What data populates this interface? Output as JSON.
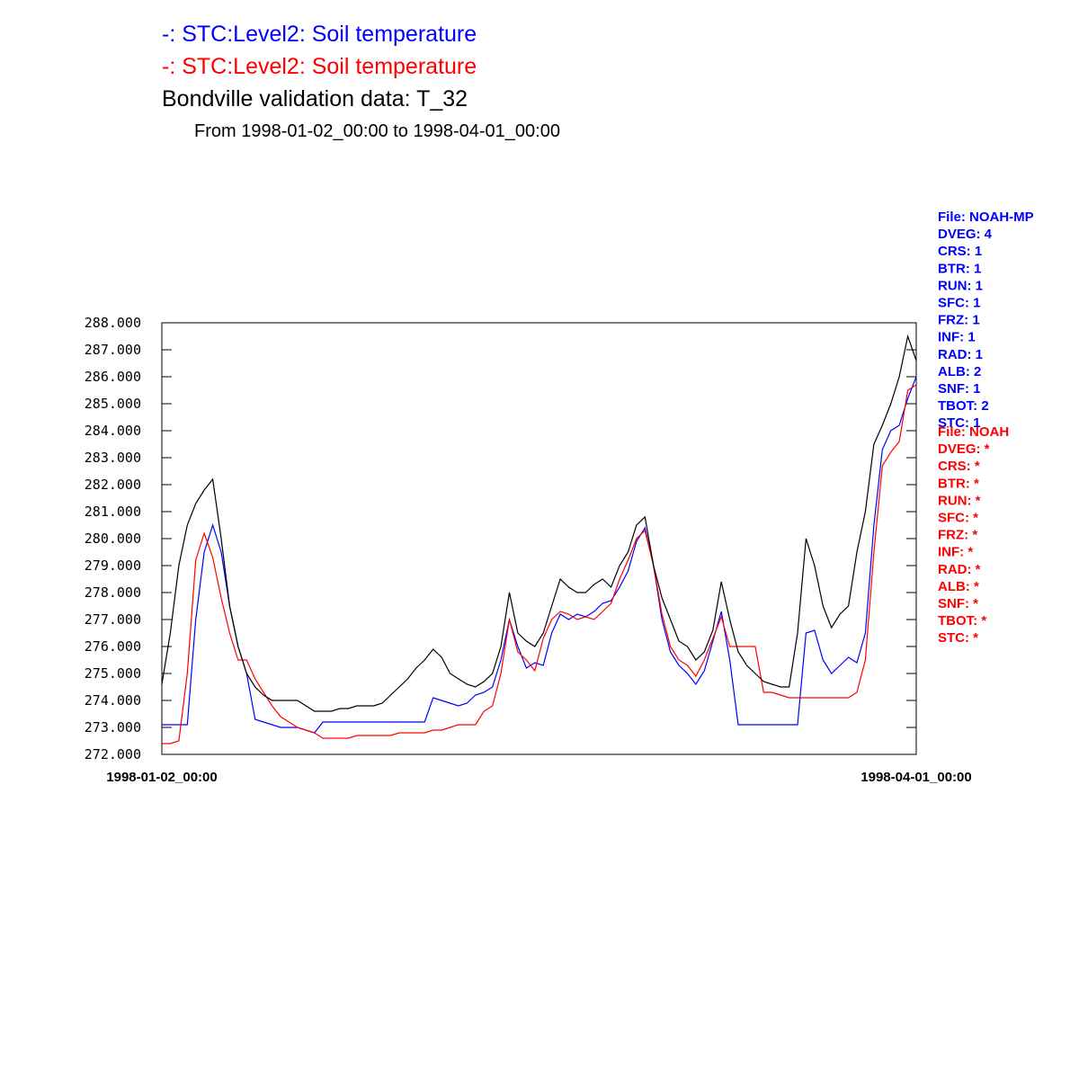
{
  "chart_data": {
    "type": "line",
    "subtitle": "From 1998-01-02_00:00 to 1998-04-01_00:00",
    "x": [
      "1998-01-02_00:00",
      "1998-01-03_00:00",
      "1998-01-04_00:00",
      "1998-01-05_00:00",
      "1998-01-06_00:00",
      "1998-01-07_00:00",
      "1998-01-08_00:00",
      "1998-01-09_00:00",
      "1998-01-10_00:00",
      "1998-01-11_00:00",
      "1998-01-12_00:00",
      "1998-01-13_00:00",
      "1998-01-14_00:00",
      "1998-01-15_00:00",
      "1998-01-16_00:00",
      "1998-01-17_00:00",
      "1998-01-18_00:00",
      "1998-01-19_00:00",
      "1998-01-20_00:00",
      "1998-01-21_00:00",
      "1998-01-22_00:00",
      "1998-01-23_00:00",
      "1998-01-24_00:00",
      "1998-01-25_00:00",
      "1998-01-26_00:00",
      "1998-01-27_00:00",
      "1998-01-28_00:00",
      "1998-01-29_00:00",
      "1998-01-30_00:00",
      "1998-01-31_00:00",
      "1998-02-01_00:00",
      "1998-02-02_00:00",
      "1998-02-03_00:00",
      "1998-02-04_00:00",
      "1998-02-05_00:00",
      "1998-02-06_00:00",
      "1998-02-07_00:00",
      "1998-02-08_00:00",
      "1998-02-09_00:00",
      "1998-02-10_00:00",
      "1998-02-11_00:00",
      "1998-02-12_00:00",
      "1998-02-13_00:00",
      "1998-02-14_00:00",
      "1998-02-15_00:00",
      "1998-02-16_00:00",
      "1998-02-17_00:00",
      "1998-02-18_00:00",
      "1998-02-19_00:00",
      "1998-02-20_00:00",
      "1998-02-21_00:00",
      "1998-02-22_00:00",
      "1998-02-23_00:00",
      "1998-02-24_00:00",
      "1998-02-25_00:00",
      "1998-02-26_00:00",
      "1998-02-27_00:00",
      "1998-02-28_00:00",
      "1998-03-01_00:00",
      "1998-03-02_00:00",
      "1998-03-03_00:00",
      "1998-03-04_00:00",
      "1998-03-05_00:00",
      "1998-03-06_00:00",
      "1998-03-07_00:00",
      "1998-03-08_00:00",
      "1998-03-09_00:00",
      "1998-03-10_00:00",
      "1998-03-11_00:00",
      "1998-03-12_00:00",
      "1998-03-13_00:00",
      "1998-03-14_00:00",
      "1998-03-15_00:00",
      "1998-03-16_00:00",
      "1998-03-17_00:00",
      "1998-03-18_00:00",
      "1998-03-19_00:00",
      "1998-03-20_00:00",
      "1998-03-21_00:00",
      "1998-03-22_00:00",
      "1998-03-23_00:00",
      "1998-03-24_00:00",
      "1998-03-25_00:00",
      "1998-03-26_00:00",
      "1998-03-27_00:00",
      "1998-03-28_00:00",
      "1998-03-29_00:00",
      "1998-03-30_00:00",
      "1998-03-31_00:00",
      "1998-04-01_00:00"
    ],
    "series": [
      {
        "name": "-:  STC:Level2: Soil temperature",
        "color": "#0000ff",
        "values": [
          273.1,
          273.1,
          273.1,
          273.1,
          277,
          279.5,
          280.5,
          279.5,
          277.5,
          276,
          275,
          273.3,
          273.2,
          273.1,
          273,
          273,
          273,
          272.9,
          272.8,
          273.2,
          273.2,
          273.2,
          273.2,
          273.2,
          273.2,
          273.2,
          273.2,
          273.2,
          273.2,
          273.2,
          273.2,
          273.2,
          274.1,
          274,
          273.9,
          273.8,
          273.9,
          274.2,
          274.3,
          274.5,
          275.5,
          277,
          276,
          275.2,
          275.4,
          275.3,
          276.5,
          277.2,
          277,
          277.2,
          277.1,
          277.3,
          277.6,
          277.7,
          278.2,
          278.8,
          279.9,
          280.4,
          279,
          277,
          275.8,
          275.3,
          275,
          274.6,
          275.1,
          276.2,
          277.3,
          275.5,
          273.1,
          273.1,
          273.1,
          273.1,
          273.1,
          273.1,
          273.1,
          273.1,
          276.5,
          276.6,
          275.5,
          275,
          275.3,
          275.6,
          275.4,
          276.5,
          280.5,
          283.3,
          284,
          284.2,
          285.2,
          286
        ]
      },
      {
        "name": "-:  STC:Level2: Soil temperature",
        "color": "#ff0000",
        "values": [
          272.4,
          272.4,
          272.5,
          275,
          279.2,
          280.2,
          279.3,
          277.8,
          276.5,
          275.5,
          275.5,
          274.8,
          274.3,
          273.8,
          273.4,
          273.2,
          273,
          272.9,
          272.8,
          272.6,
          272.6,
          272.6,
          272.6,
          272.7,
          272.7,
          272.7,
          272.7,
          272.7,
          272.8,
          272.8,
          272.8,
          272.8,
          272.9,
          272.9,
          273,
          273.1,
          273.1,
          273.1,
          273.6,
          273.8,
          275,
          277,
          275.8,
          275.5,
          275.1,
          276.3,
          277,
          277.3,
          277.2,
          277,
          277.1,
          277,
          277.3,
          277.6,
          278.5,
          279.2,
          280,
          280.3,
          279,
          277.2,
          276,
          275.5,
          275.3,
          274.9,
          275.5,
          276.3,
          277.1,
          276,
          276,
          276,
          276,
          274.3,
          274.3,
          274.2,
          274.1,
          274.1,
          274.1,
          274.1,
          274.1,
          274.1,
          274.1,
          274.1,
          274.3,
          275.5,
          279.5,
          282.7,
          283.2,
          283.6,
          285.5,
          285.7
        ]
      },
      {
        "name": "Bondville validation data:  T_32",
        "color": "#000000",
        "values": [
          274.6,
          276.5,
          279,
          280.5,
          281.3,
          281.8,
          282.2,
          280,
          277.5,
          276,
          275,
          274.5,
          274.2,
          274,
          274,
          274,
          274,
          273.8,
          273.6,
          273.6,
          273.6,
          273.7,
          273.7,
          273.8,
          273.8,
          273.8,
          273.9,
          274.2,
          274.5,
          274.8,
          275.2,
          275.5,
          275.9,
          275.6,
          275,
          274.8,
          274.6,
          274.5,
          274.7,
          275,
          276,
          278,
          276.5,
          276.2,
          276,
          276.5,
          277.5,
          278.5,
          278.2,
          278,
          278,
          278.3,
          278.5,
          278.2,
          279,
          279.5,
          280.5,
          280.8,
          279,
          277.8,
          277,
          276.2,
          276,
          275.5,
          275.8,
          276.6,
          278.4,
          277,
          275.8,
          275.3,
          275,
          274.7,
          274.6,
          274.5,
          274.5,
          276.5,
          280,
          279,
          277.5,
          276.7,
          277.2,
          277.5,
          279.5,
          281,
          283.5,
          284.2,
          285,
          286,
          287.5,
          286.6
        ]
      }
    ],
    "xlim": [
      "1998-01-02_00:00",
      "1998-04-01_00:00"
    ],
    "xticks": [
      "1998-01-02_00:00",
      "1998-04-01_00:00"
    ],
    "ylim": [
      272,
      288
    ],
    "yticks": [
      {
        "value": 272,
        "label": "272.000"
      },
      {
        "value": 273,
        "label": "273.000"
      },
      {
        "value": 274,
        "label": "274.000"
      },
      {
        "value": 275,
        "label": "275.000"
      },
      {
        "value": 276,
        "label": "276.000"
      },
      {
        "value": 277,
        "label": "277.000"
      },
      {
        "value": 278,
        "label": "278.000"
      },
      {
        "value": 279,
        "label": "279.000"
      },
      {
        "value": 280,
        "label": "280.000"
      },
      {
        "value": 281,
        "label": "281.000"
      },
      {
        "value": 282,
        "label": "282.000"
      },
      {
        "value": 283,
        "label": "283.000"
      },
      {
        "value": 284,
        "label": "284.000"
      },
      {
        "value": 285,
        "label": "285.000"
      },
      {
        "value": 286,
        "label": "286.000"
      },
      {
        "value": 287,
        "label": "287.000"
      },
      {
        "value": 288,
        "label": "288.000"
      }
    ],
    "annotations": [
      {
        "color": "#0000ff",
        "lines": [
          "File: NOAH-MP",
          "DVEG: 4",
          "CRS: 1",
          "BTR: 1",
          "RUN: 1",
          "SFC: 1",
          "FRZ: 1",
          "INF: 1",
          "RAD: 1",
          "ALB: 2",
          "SNF: 1",
          "TBOT: 2",
          "STC: 1"
        ]
      },
      {
        "color": "#ff0000",
        "lines": [
          "File: NOAH",
          "DVEG: *",
          "CRS: *",
          "BTR: *",
          "RUN: *",
          "SFC: *",
          "FRZ: *",
          "INF: *",
          "RAD: *",
          "ALB: *",
          "SNF: *",
          "TBOT: *",
          "STC: *"
        ]
      }
    ]
  }
}
